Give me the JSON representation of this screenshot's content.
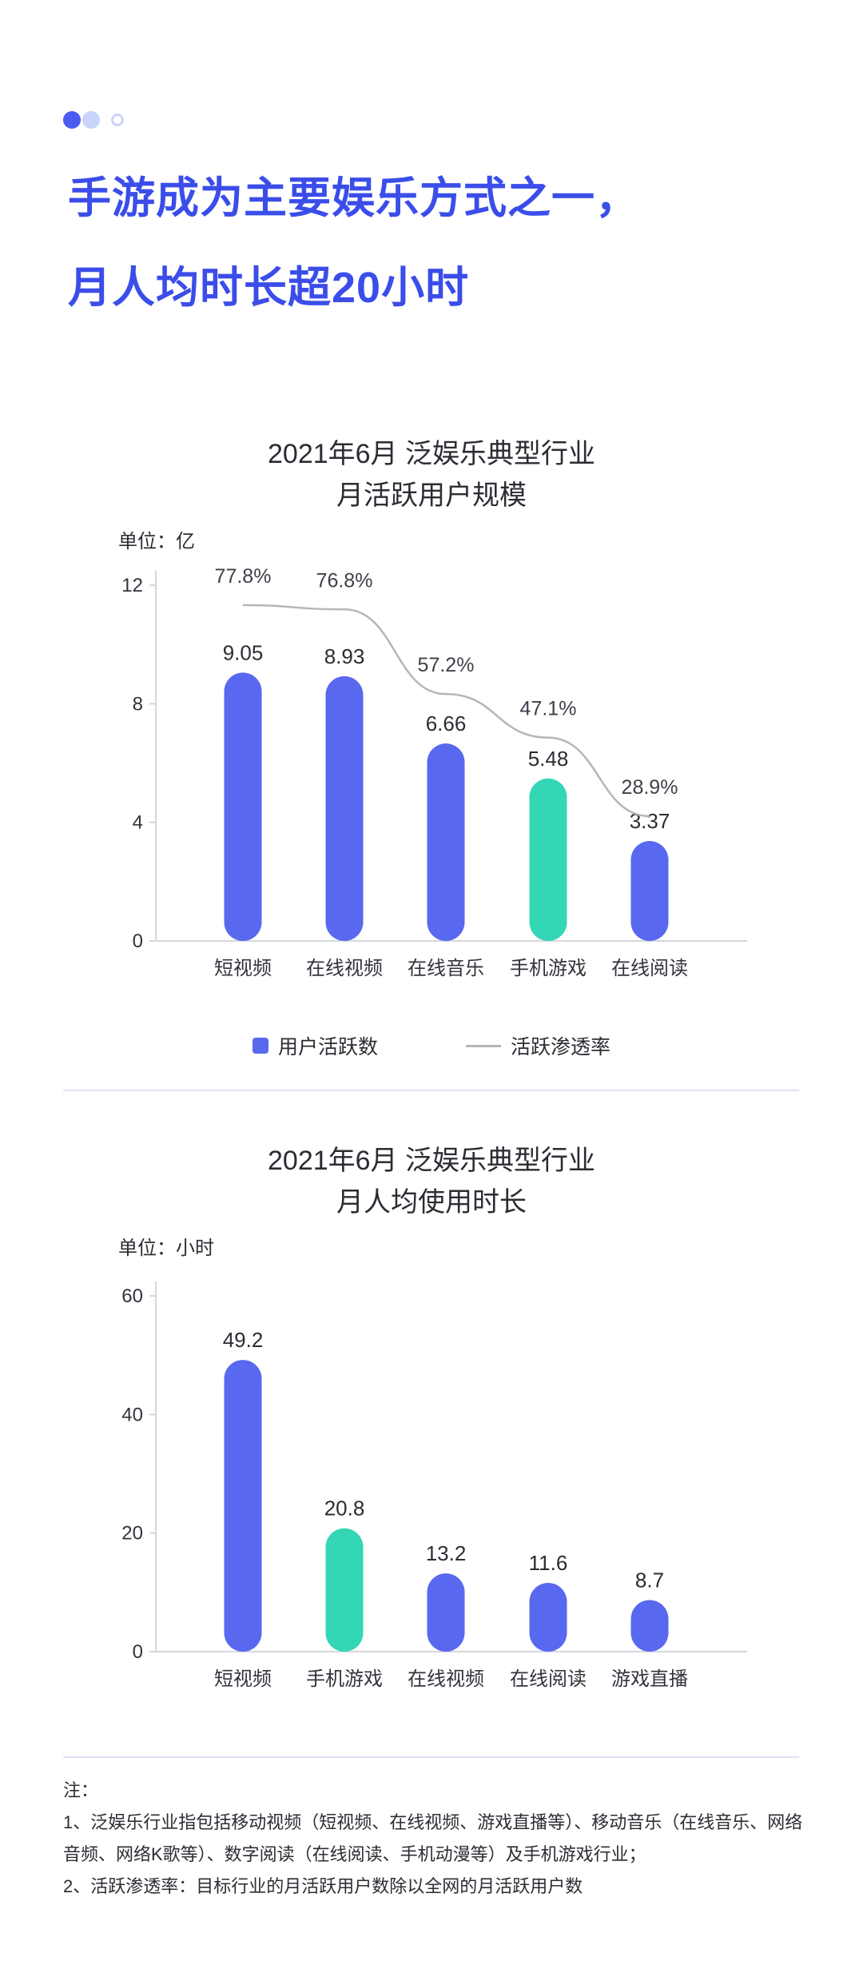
{
  "pagination": {
    "dots": [
      {
        "state": "active"
      },
      {
        "state": "filled"
      },
      {
        "state": "outline"
      }
    ]
  },
  "headline": {
    "line1": "手游成为主要娱乐方式之一，",
    "line2": "月人均时长超20小时"
  },
  "colors": {
    "headline_blue": "#3B4DE9",
    "bar_blue": "#5868EF",
    "bar_teal": "#33D6B5",
    "trend_line_gray": "#B4B6BC",
    "divider_blue": "#DCE3F5",
    "dot_active": "#4A5CF0",
    "dot_inactive": "#C9D4FA",
    "text_dark": "#30303A"
  },
  "chart_data": [
    {
      "type": "bar",
      "title_line1": "2021年6月 泛娱乐典型行业",
      "title_line2": "月活跃用户规模",
      "unit_label": "单位：亿",
      "categories": [
        "短视频",
        "在线视频",
        "在线音乐",
        "手机游戏",
        "在线阅读"
      ],
      "series": [
        {
          "name": "用户活跃数",
          "type": "bar",
          "values": [
            9.05,
            8.93,
            6.66,
            5.48,
            3.37
          ],
          "value_labels": [
            "9.05",
            "8.93",
            "6.66",
            "5.48",
            "3.37"
          ],
          "highlight_index": 3
        },
        {
          "name": "活跃渗透率",
          "type": "line",
          "values": [
            77.8,
            76.8,
            57.2,
            47.1,
            28.9
          ],
          "value_labels": [
            "77.8%",
            "76.8%",
            "57.2%",
            "47.1%",
            "28.9%"
          ]
        }
      ],
      "y_ticks": [
        "0",
        "4",
        "8",
        "12"
      ],
      "ylim": [
        0,
        12
      ],
      "grid": false,
      "legend_position": "bottom-center",
      "legend": [
        {
          "label": "用户活跃数",
          "swatch": "bar"
        },
        {
          "label": "活跃渗透率",
          "swatch": "line"
        }
      ]
    },
    {
      "type": "bar",
      "title_line1": "2021年6月 泛娱乐典型行业",
      "title_line2": "月人均使用时长",
      "unit_label": "单位：小时",
      "categories": [
        "短视频",
        "手机游戏",
        "在线视频",
        "在线阅读",
        "游戏直播"
      ],
      "series": [
        {
          "type": "bar",
          "values": [
            49.2,
            20.8,
            13.2,
            11.6,
            8.7
          ],
          "value_labels": [
            "49.2",
            "20.8",
            "13.2",
            "11.6",
            "8.7"
          ],
          "highlight_index": 1
        }
      ],
      "y_ticks": [
        "0",
        "20",
        "40",
        "60"
      ],
      "ylim": [
        0,
        60
      ],
      "grid": false
    }
  ],
  "notes": {
    "heading": "注：",
    "items": [
      "1、泛娱乐行业指包括移动视频（短视频、在线视频、游戏直播等）、移动音乐（在线音乐、网络音频、网络K歌等）、数字阅读（在线阅读、手机动漫等）及手机游戏行业；",
      "2、活跃渗透率：目标行业的月活跃用户数除以全网的月活跃用户数"
    ]
  }
}
